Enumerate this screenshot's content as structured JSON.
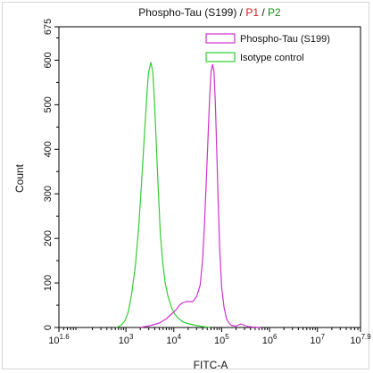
{
  "chart_data": {
    "type": "line",
    "title_parts": {
      "main": "Phospho-Tau (S199)",
      "sep1": " / ",
      "p1": "P1",
      "sep2": " / ",
      "p2": "P2"
    },
    "xlabel": "FITC-A",
    "ylabel": "Count",
    "xscale": "log",
    "xlim": [
      1.6,
      7.9
    ],
    "ylim": [
      0,
      675
    ],
    "y_ticks": [
      0,
      100,
      200,
      300,
      400,
      500,
      600,
      675
    ],
    "x_ticks": [
      {
        "exp": 1.6,
        "base": "10",
        "sup": "1.6"
      },
      {
        "exp": 3,
        "base": "10",
        "sup": "3"
      },
      {
        "exp": 4,
        "base": "10",
        "sup": "4"
      },
      {
        "exp": 5,
        "base": "10",
        "sup": "5"
      },
      {
        "exp": 6,
        "base": "10",
        "sup": "6"
      },
      {
        "exp": 7,
        "base": "10",
        "sup": "7"
      },
      {
        "exp": 7.9,
        "base": "10",
        "sup": "7.9"
      }
    ],
    "legend_position": "top-right",
    "grid": false,
    "series": [
      {
        "name": "Phospho-Tau (S199)",
        "color": "#cc33cc",
        "x": [
          3.3,
          3.5,
          3.7,
          3.85,
          3.95,
          4.05,
          4.12,
          4.18,
          4.25,
          4.32,
          4.4,
          4.48,
          4.55,
          4.6,
          4.64,
          4.68,
          4.72,
          4.75,
          4.78,
          4.81,
          4.84,
          4.87,
          4.9,
          4.93,
          4.96,
          5.0,
          5.05,
          5.1,
          5.15,
          5.2,
          5.3,
          5.4,
          5.55,
          5.65,
          5.8
        ],
        "y": [
          0,
          4,
          10,
          20,
          30,
          40,
          50,
          55,
          58,
          58,
          58,
          70,
          95,
          150,
          230,
          330,
          440,
          520,
          575,
          590,
          575,
          500,
          390,
          270,
          170,
          90,
          45,
          20,
          10,
          5,
          3,
          8,
          2,
          1,
          0
        ]
      },
      {
        "name": "Isotype control",
        "color": "#33cc33",
        "x": [
          2.8,
          2.9,
          2.98,
          3.05,
          3.12,
          3.2,
          3.27,
          3.33,
          3.38,
          3.43,
          3.47,
          3.52,
          3.56,
          3.6,
          3.64,
          3.68,
          3.72,
          3.77,
          3.82,
          3.88,
          3.95,
          4.02,
          4.1,
          4.2,
          4.32,
          4.45,
          4.6,
          4.75
        ],
        "y": [
          0,
          5,
          15,
          35,
          75,
          140,
          230,
          330,
          420,
          510,
          570,
          595,
          575,
          500,
          400,
          300,
          210,
          145,
          100,
          70,
          45,
          30,
          20,
          12,
          8,
          5,
          2,
          0
        ]
      }
    ]
  }
}
